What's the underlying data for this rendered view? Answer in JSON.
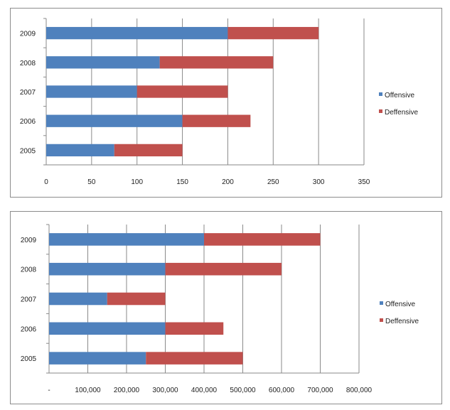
{
  "chart_data": [
    {
      "type": "bar",
      "orientation": "horizontal",
      "stacked": true,
      "categories": [
        "2005",
        "2006",
        "2007",
        "2008",
        "2009"
      ],
      "series": [
        {
          "name": "Offensive",
          "color": "#4f81bd",
          "values": [
            75,
            150,
            100,
            125,
            200
          ]
        },
        {
          "name": "Deffensive",
          "color": "#c0504d",
          "values": [
            75,
            75,
            100,
            125,
            100
          ]
        }
      ],
      "xlim": [
        0,
        350
      ],
      "xticks": [
        "0",
        "50",
        "100",
        "150",
        "200",
        "250",
        "300",
        "350"
      ],
      "grid": true,
      "legend_position": "right"
    },
    {
      "type": "bar",
      "orientation": "horizontal",
      "stacked": true,
      "categories": [
        "2005",
        "2006",
        "2007",
        "2008",
        "2009"
      ],
      "series": [
        {
          "name": "Offensive",
          "color": "#4f81bd",
          "values": [
            250000,
            300000,
            150000,
            300000,
            400000
          ]
        },
        {
          "name": "Deffensive",
          "color": "#c0504d",
          "values": [
            250000,
            150000,
            150000,
            300000,
            300000
          ]
        }
      ],
      "xlim": [
        0,
        800000
      ],
      "xticks": [
        "-",
        "100,000",
        "200,000",
        "300,000",
        "400,000",
        "500,000",
        "600,000",
        "700,000",
        "800,000"
      ],
      "grid": true,
      "legend_position": "right"
    }
  ]
}
